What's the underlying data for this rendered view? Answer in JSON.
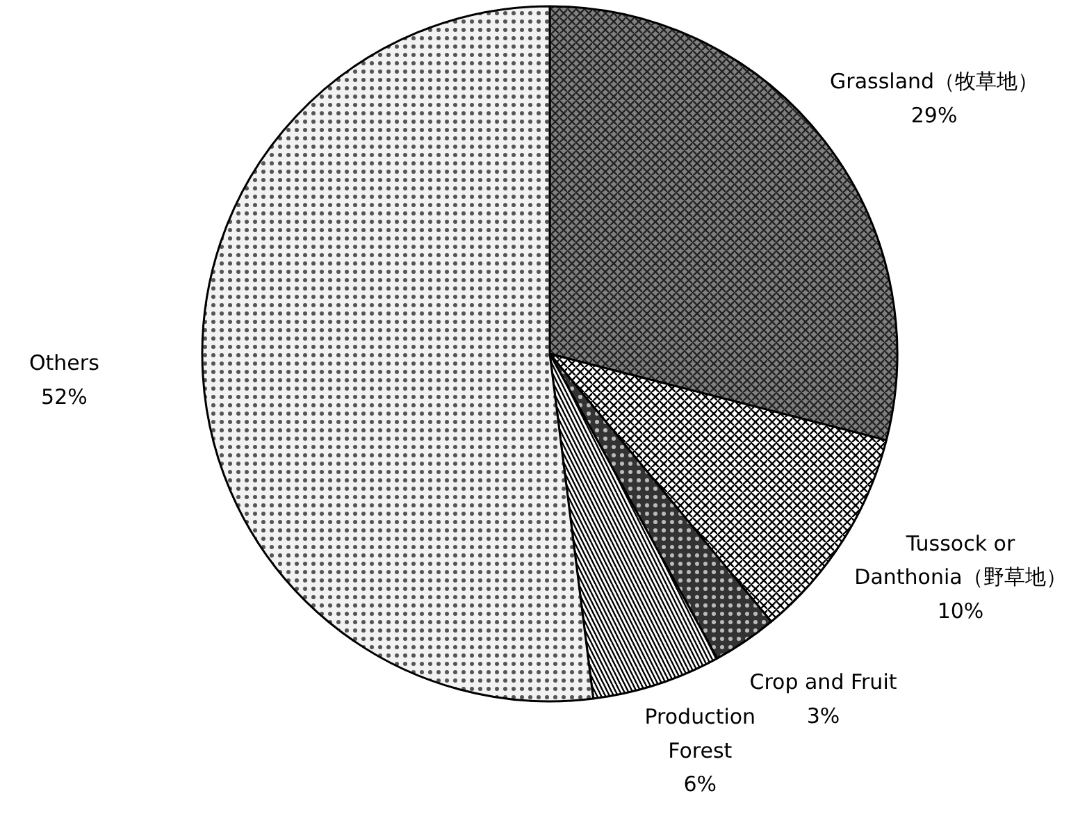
{
  "chart_data": {
    "type": "pie",
    "categories": [
      "Grassland（牧草地）",
      "Tussock or\nDanthonia（野草地）",
      "Crop and Fruit",
      "Production\nForest",
      "Others"
    ],
    "values": [
      29,
      10,
      3,
      6,
      52
    ],
    "value_labels": [
      "29%",
      "10%",
      "3%",
      "6%",
      "52%"
    ],
    "colors": [
      "#808080",
      "#ffffff",
      "#333333",
      "#ffffff",
      "#f2f2f2"
    ]
  }
}
